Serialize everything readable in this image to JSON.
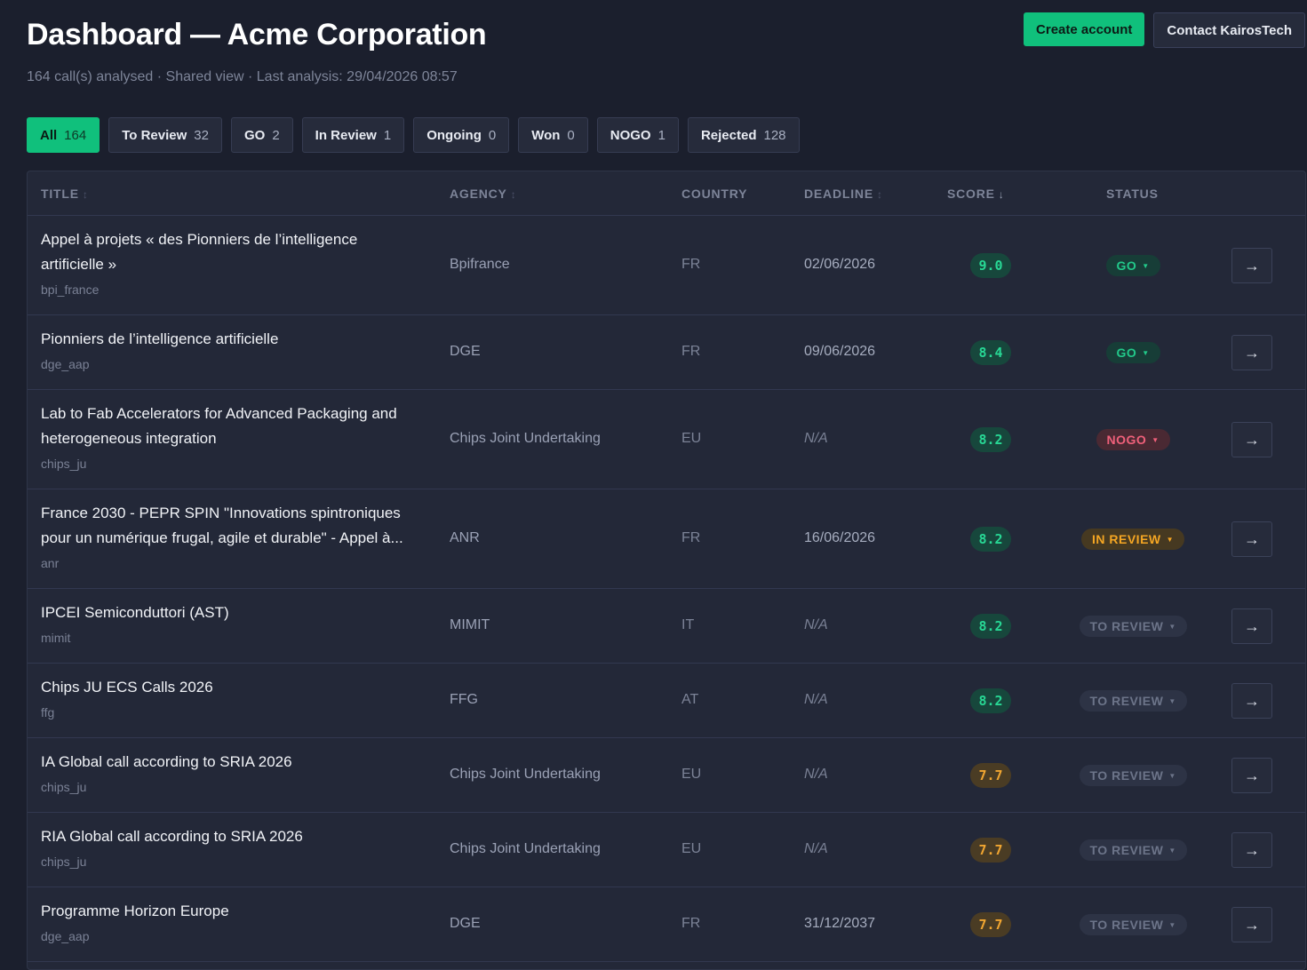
{
  "header": {
    "title": "Dashboard — Acme Corporation",
    "subtitle": "164 call(s) analysed · Shared view · Last analysis: 29/04/2026 08:57",
    "create_account_label": "Create account",
    "contact_label": "Contact KairosTech"
  },
  "filters": [
    {
      "label": "All",
      "count": "164",
      "active": true
    },
    {
      "label": "To Review",
      "count": "32"
    },
    {
      "label": "GO",
      "count": "2"
    },
    {
      "label": "In Review",
      "count": "1"
    },
    {
      "label": "Ongoing",
      "count": "0"
    },
    {
      "label": "Won",
      "count": "0"
    },
    {
      "label": "NOGO",
      "count": "1"
    },
    {
      "label": "Rejected",
      "count": "128"
    }
  ],
  "columns": {
    "title": "TITLE",
    "agency": "AGENCY",
    "country": "COUNTRY",
    "deadline": "DEADLINE",
    "score": "SCORE",
    "status": "STATUS"
  },
  "icons": {
    "sort": "sort-icon",
    "sort_desc": "arrow-down-icon",
    "caret": "caret-down-icon",
    "open": "arrow-right-icon"
  },
  "colors": {
    "accent": "#10c07c",
    "background": "#1b1f2d",
    "score_high": "#28d895",
    "score_mid": "#f0a531",
    "status_go": "#22c98a",
    "status_nogo": "#f0607a",
    "status_in_review": "#f5a623"
  },
  "rows": [
    {
      "title": "Appel à projets « des Pionniers de l’intelligence artificielle »",
      "source": "bpi_france",
      "agency": "Bpifrance",
      "country": "FR",
      "deadline": "02/06/2026",
      "score": "9.0",
      "status": "GO"
    },
    {
      "title": "Pionniers de l’intelligence artificielle",
      "source": "dge_aap",
      "agency": "DGE",
      "country": "FR",
      "deadline": "09/06/2026",
      "score": "8.4",
      "status": "GO"
    },
    {
      "title": "Lab to Fab Accelerators for Advanced Packaging and heterogeneous integration",
      "source": "chips_ju",
      "agency": "Chips Joint Undertaking",
      "country": "EU",
      "deadline": "N/A",
      "score": "8.2",
      "status": "NOGO"
    },
    {
      "title": "France 2030 - PEPR SPIN \"Innovations spintroniques pour un numérique frugal, agile et durable\" - Appel à...",
      "source": "anr",
      "agency": "ANR",
      "country": "FR",
      "deadline": "16/06/2026",
      "score": "8.2",
      "status": "IN REVIEW"
    },
    {
      "title": "IPCEI Semiconduttori (AST)",
      "source": "mimit",
      "agency": "MIMIT",
      "country": "IT",
      "deadline": "N/A",
      "score": "8.2",
      "status": "TO REVIEW"
    },
    {
      "title": "Chips JU ECS Calls 2026",
      "source": "ffg",
      "agency": "FFG",
      "country": "AT",
      "deadline": "N/A",
      "score": "8.2",
      "status": "TO REVIEW"
    },
    {
      "title": "IA Global call according to SRIA 2026",
      "source": "chips_ju",
      "agency": "Chips Joint Undertaking",
      "country": "EU",
      "deadline": "N/A",
      "score": "7.7",
      "status": "TO REVIEW"
    },
    {
      "title": "RIA Global call according to SRIA 2026",
      "source": "chips_ju",
      "agency": "Chips Joint Undertaking",
      "country": "EU",
      "deadline": "N/A",
      "score": "7.7",
      "status": "TO REVIEW"
    },
    {
      "title": "Programme Horizon Europe",
      "source": "dge_aap",
      "agency": "DGE",
      "country": "FR",
      "deadline": "31/12/2037",
      "score": "7.7",
      "status": "TO REVIEW"
    }
  ]
}
